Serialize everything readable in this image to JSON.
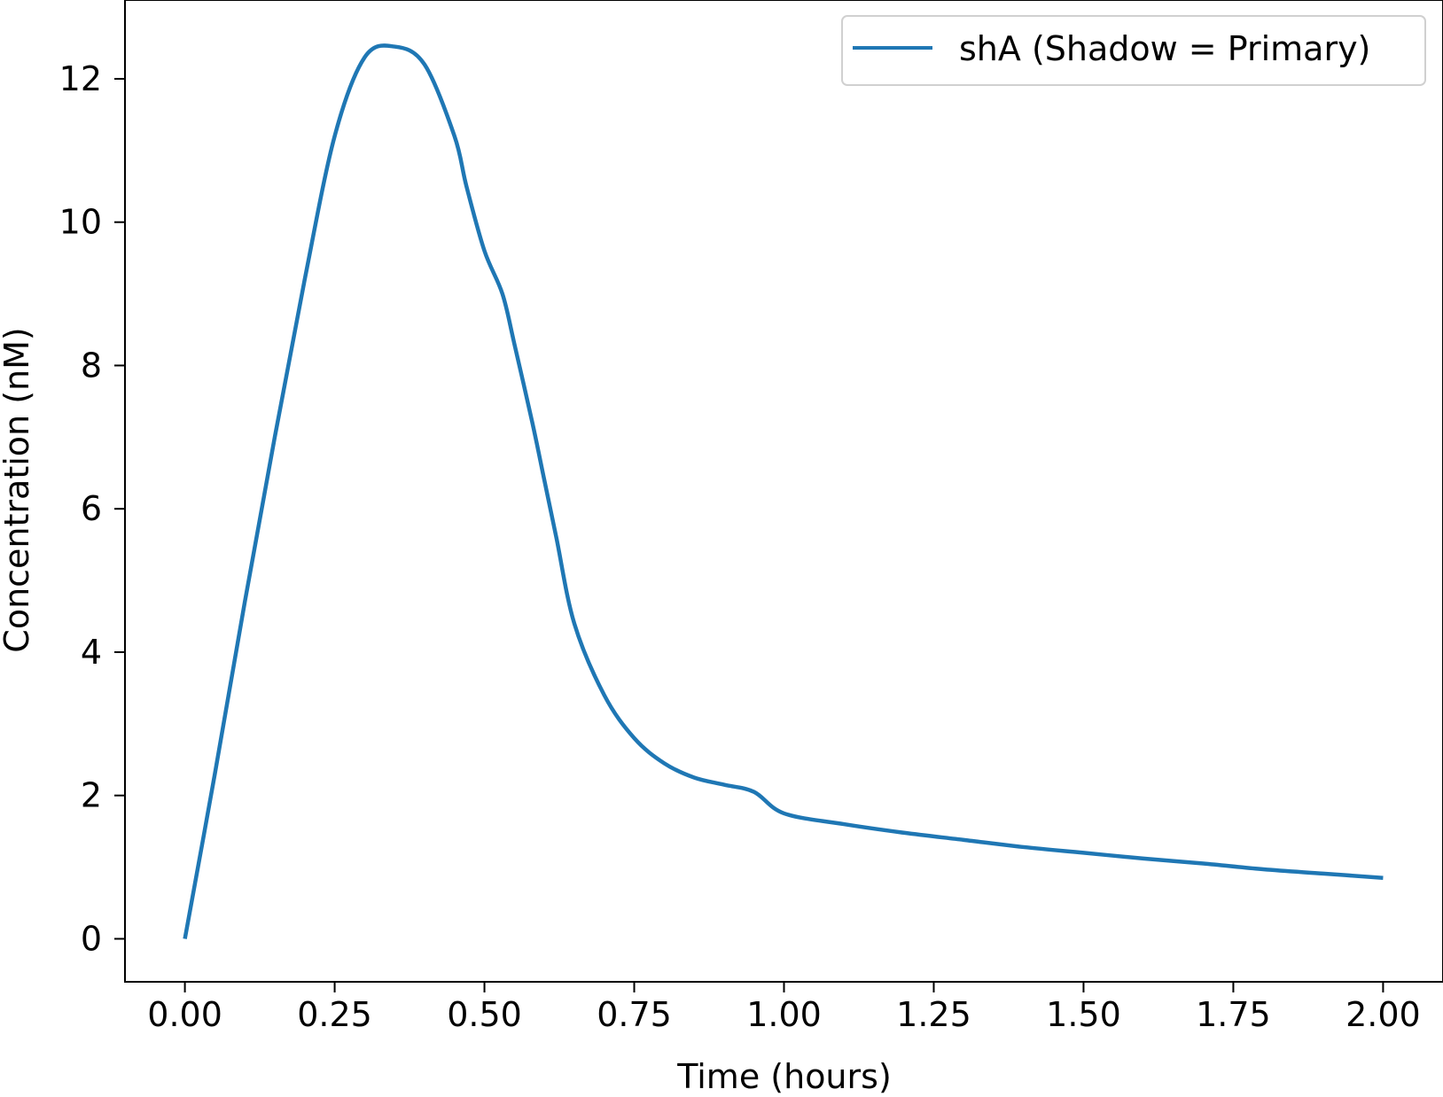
{
  "chart_data": {
    "type": "line",
    "title": "",
    "xlabel": "Time (hours)",
    "ylabel": "Concentration (nM)",
    "xlim": [
      -0.1,
      2.1
    ],
    "ylim": [
      -0.6,
      13.1
    ],
    "x_ticks": [
      0.0,
      0.25,
      0.5,
      0.75,
      1.0,
      1.25,
      1.5,
      1.75,
      2.0
    ],
    "x_tick_labels": [
      "0.00",
      "0.25",
      "0.50",
      "0.75",
      "1.00",
      "1.25",
      "1.50",
      "1.75",
      "2.00"
    ],
    "y_ticks": [
      0,
      2,
      4,
      6,
      8,
      10,
      12
    ],
    "y_tick_labels": [
      "0",
      "2",
      "4",
      "6",
      "8",
      "10",
      "12"
    ],
    "grid": false,
    "legend_position": "top-right",
    "series": [
      {
        "name": "shA (Shadow = Primary)",
        "color": "#1f77b4",
        "x": [
          0.0,
          0.05,
          0.1,
          0.15,
          0.2,
          0.25,
          0.3,
          0.35,
          0.4,
          0.45,
          0.47,
          0.5,
          0.53,
          0.55,
          0.58,
          0.6,
          0.62,
          0.65,
          0.7,
          0.75,
          0.8,
          0.85,
          0.9,
          0.95,
          1.0,
          1.1,
          1.2,
          1.3,
          1.4,
          1.5,
          1.6,
          1.7,
          1.8,
          1.9,
          2.0
        ],
        "y": [
          0.0,
          2.3,
          4.7,
          7.0,
          9.2,
          11.2,
          12.3,
          12.45,
          12.2,
          11.2,
          10.5,
          9.6,
          9.0,
          8.3,
          7.2,
          6.4,
          5.6,
          4.4,
          3.4,
          2.8,
          2.45,
          2.25,
          2.15,
          2.05,
          1.75,
          1.6,
          1.48,
          1.38,
          1.28,
          1.2,
          1.12,
          1.05,
          0.97,
          0.91,
          0.85
        ]
      }
    ]
  }
}
